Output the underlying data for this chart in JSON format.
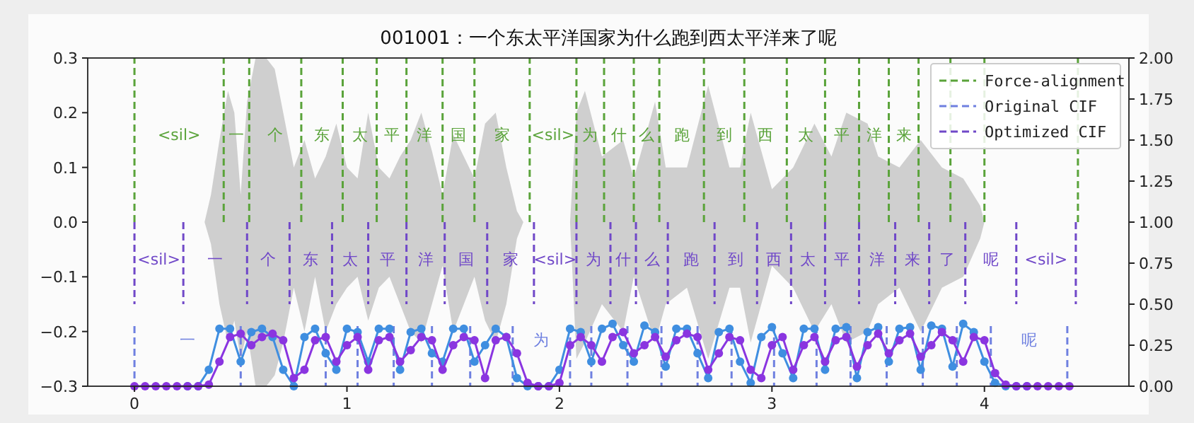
{
  "chart_data": {
    "type": "line",
    "title": "001001：一个东太平洋国家为什么跑到西太平洋来了呢",
    "xlim": [
      -0.22,
      4.68
    ],
    "xticks": [
      0,
      1,
      2,
      3,
      4
    ],
    "ylim": [
      -0.3,
      0.3
    ],
    "yticks": [
      {
        "value": -0.3,
        "label": "−0.3"
      },
      {
        "value": -0.2,
        "label": "−0.2"
      },
      {
        "value": -0.1,
        "label": "−0.1"
      },
      {
        "value": 0,
        "label": "0.0"
      },
      0.1,
      0.2,
      0.3
    ],
    "y2lim": [
      0,
      2
    ],
    "y2ticks": [
      {
        "value": 0,
        "label": "0.00"
      },
      {
        "value": 0.25,
        "label": "0.25"
      },
      {
        "value": 0.5,
        "label": "0.50"
      },
      {
        "value": 0.75,
        "label": "0.75"
      },
      {
        "value": 1,
        "label": "1.00"
      },
      {
        "value": 1.25,
        "label": "1.25"
      },
      {
        "value": 1.5,
        "label": "1.50"
      },
      {
        "value": 1.75,
        "label": "1.75"
      },
      {
        "value": 2,
        "label": "2.00"
      }
    ],
    "legend": "top right",
    "x": [
      0,
      0.05,
      0.1,
      0.15,
      0.2,
      0.25,
      0.3,
      0.35,
      0.4,
      0.45,
      0.5,
      0.55,
      0.6,
      0.65,
      0.7,
      0.75,
      0.8,
      0.85,
      0.9,
      0.95,
      1.0,
      1.05,
      1.1,
      1.15,
      1.2,
      1.25,
      1.3,
      1.35,
      1.4,
      1.45,
      1.5,
      1.55,
      1.6,
      1.65,
      1.7,
      1.75,
      1.8,
      1.85,
      1.9,
      1.95,
      2.0,
      2.05,
      2.1,
      2.15,
      2.2,
      2.25,
      2.3,
      2.35,
      2.4,
      2.45,
      2.5,
      2.55,
      2.6,
      2.65,
      2.7,
      2.75,
      2.8,
      2.85,
      2.9,
      2.95,
      3.0,
      3.05,
      3.1,
      3.15,
      3.2,
      3.25,
      3.3,
      3.35,
      3.4,
      3.45,
      3.5,
      3.55,
      3.6,
      3.65,
      3.7,
      3.75,
      3.8,
      3.85,
      3.9,
      3.95,
      4.0,
      4.05,
      4.1,
      4.15,
      4.2,
      4.25,
      4.3,
      4.35,
      4.4
    ],
    "series": [
      {
        "type": "area",
        "color": "#cfcfcf",
        "x": [
          0,
          0.33,
          0.36,
          0.4,
          0.44,
          0.47,
          0.5,
          0.53,
          0.57,
          0.62,
          0.66,
          0.7,
          0.75,
          0.8,
          0.85,
          0.9,
          0.95,
          1.0,
          1.05,
          1.1,
          1.15,
          1.2,
          1.25,
          1.3,
          1.35,
          1.4,
          1.45,
          1.5,
          1.55,
          1.6,
          1.65,
          1.7,
          1.75,
          1.8,
          1.83,
          2.05,
          2.08,
          2.12,
          2.2,
          2.3,
          2.35,
          2.45,
          2.5,
          2.6,
          2.7,
          2.8,
          2.85,
          2.9,
          3.0,
          3.1,
          3.2,
          3.28,
          3.35,
          3.45,
          3.5,
          3.6,
          3.7,
          3.8,
          3.9,
          3.98,
          4.0,
          4.44
        ],
        "values": [
          0,
          0,
          0.05,
          0.15,
          0.24,
          0.2,
          0.05,
          0.22,
          0.3,
          0.3,
          0.28,
          0.2,
          0.1,
          0.15,
          0.08,
          0.12,
          0.18,
          0.1,
          0.08,
          0.2,
          0.1,
          0.08,
          0.12,
          0.15,
          0.2,
          0.13,
          0.05,
          0.16,
          0.12,
          0.08,
          0.18,
          0.2,
          0.1,
          0.02,
          0,
          0,
          0.2,
          0.24,
          0.12,
          0.15,
          0.08,
          0.22,
          0.1,
          0.1,
          0.25,
          0.1,
          0.1,
          0.2,
          0.06,
          0.1,
          0.18,
          0.12,
          0.2,
          0.18,
          0.12,
          0.1,
          0.15,
          0.1,
          0.08,
          0.03,
          0,
          0
        ]
      },
      {
        "type": "area",
        "color": "#cfcfcf",
        "x": [
          0,
          0.33,
          0.36,
          0.4,
          0.44,
          0.47,
          0.5,
          0.53,
          0.57,
          0.62,
          0.66,
          0.7,
          0.75,
          0.8,
          0.85,
          0.9,
          0.95,
          1.0,
          1.05,
          1.1,
          1.15,
          1.2,
          1.25,
          1.3,
          1.35,
          1.4,
          1.45,
          1.5,
          1.55,
          1.6,
          1.65,
          1.7,
          1.75,
          1.8,
          1.83,
          2.05,
          2.08,
          2.12,
          2.2,
          2.3,
          2.35,
          2.45,
          2.5,
          2.6,
          2.7,
          2.8,
          2.85,
          2.9,
          3.0,
          3.1,
          3.2,
          3.28,
          3.35,
          3.45,
          3.5,
          3.6,
          3.7,
          3.8,
          3.9,
          3.98,
          4.0,
          4.44
        ],
        "values": [
          0,
          0,
          -0.04,
          -0.15,
          -0.22,
          -0.18,
          -0.25,
          -0.2,
          -0.3,
          -0.3,
          -0.28,
          -0.22,
          -0.12,
          -0.2,
          -0.1,
          -0.2,
          -0.15,
          -0.12,
          -0.1,
          -0.18,
          -0.12,
          -0.1,
          -0.15,
          -0.2,
          -0.22,
          -0.15,
          -0.08,
          -0.2,
          -0.15,
          -0.1,
          -0.18,
          -0.22,
          -0.15,
          -0.03,
          0,
          0,
          -0.25,
          -0.22,
          -0.15,
          -0.2,
          -0.1,
          -0.22,
          -0.15,
          -0.12,
          -0.25,
          -0.12,
          -0.12,
          -0.22,
          -0.08,
          -0.12,
          -0.2,
          -0.15,
          -0.22,
          -0.2,
          -0.15,
          -0.12,
          -0.2,
          -0.12,
          -0.1,
          -0.03,
          0,
          0
        ]
      },
      {
        "name": "Force-alignment",
        "color": "#5aa33a",
        "line_style": "dashed",
        "x": [
          0,
          0
        ],
        "values": [
          0,
          0.3
        ]
      },
      {
        "color": "#5aa33a",
        "line_style": "dashed",
        "x": [
          0.42,
          0.42
        ],
        "values": [
          0,
          0.3
        ]
      },
      {
        "color": "#5aa33a",
        "line_style": "dashed",
        "x": [
          0.54,
          0.54
        ],
        "values": [
          0,
          0.3
        ]
      },
      {
        "color": "#5aa33a",
        "line_style": "dashed",
        "x": [
          0.785,
          0.785
        ],
        "values": [
          0,
          0.3
        ]
      },
      {
        "color": "#5aa33a",
        "line_style": "dashed",
        "x": [
          0.98,
          0.98
        ],
        "values": [
          0,
          0.3
        ]
      },
      {
        "color": "#5aa33a",
        "line_style": "dashed",
        "x": [
          1.14,
          1.14
        ],
        "values": [
          0,
          0.3
        ]
      },
      {
        "color": "#5aa33a",
        "line_style": "dashed",
        "x": [
          1.28,
          1.28
        ],
        "values": [
          0,
          0.3
        ]
      },
      {
        "color": "#5aa33a",
        "line_style": "dashed",
        "x": [
          1.45,
          1.45
        ],
        "values": [
          0,
          0.3
        ]
      },
      {
        "color": "#5aa33a",
        "line_style": "dashed",
        "x": [
          1.6,
          1.6
        ],
        "values": [
          0,
          0.3
        ]
      },
      {
        "color": "#5aa33a",
        "line_style": "dashed",
        "x": [
          1.86,
          1.86
        ],
        "values": [
          0,
          0.3
        ]
      },
      {
        "color": "#5aa33a",
        "line_style": "dashed",
        "x": [
          2.08,
          2.08
        ],
        "values": [
          0,
          0.3
        ]
      },
      {
        "color": "#5aa33a",
        "line_style": "dashed",
        "x": [
          2.21,
          2.21
        ],
        "values": [
          0,
          0.3
        ]
      },
      {
        "color": "#5aa33a",
        "line_style": "dashed",
        "x": [
          2.35,
          2.35
        ],
        "values": [
          0,
          0.3
        ]
      },
      {
        "color": "#5aa33a",
        "line_style": "dashed",
        "x": [
          2.47,
          2.47
        ],
        "values": [
          0,
          0.3
        ]
      },
      {
        "color": "#5aa33a",
        "line_style": "dashed",
        "x": [
          2.68,
          2.68
        ],
        "values": [
          0,
          0.3
        ]
      },
      {
        "color": "#5aa33a",
        "line_style": "dashed",
        "x": [
          2.87,
          2.87
        ],
        "values": [
          0,
          0.3
        ]
      },
      {
        "color": "#5aa33a",
        "line_style": "dashed",
        "x": [
          3.07,
          3.07
        ],
        "values": [
          0,
          0.3
        ]
      },
      {
        "color": "#5aa33a",
        "line_style": "dashed",
        "x": [
          3.25,
          3.25
        ],
        "values": [
          0,
          0.3
        ]
      },
      {
        "color": "#5aa33a",
        "line_style": "dashed",
        "x": [
          3.41,
          3.41
        ],
        "values": [
          0,
          0.3
        ]
      },
      {
        "color": "#5aa33a",
        "line_style": "dashed",
        "x": [
          3.55,
          3.55
        ],
        "values": [
          0,
          0.3
        ]
      },
      {
        "color": "#5aa33a",
        "line_style": "dashed",
        "x": [
          3.69,
          3.69
        ],
        "values": [
          0,
          0.3
        ]
      },
      {
        "color": "#5aa33a",
        "line_style": "dashed",
        "x": [
          3.84,
          3.84
        ],
        "values": [
          0,
          0.3
        ]
      },
      {
        "color": "#5aa33a",
        "line_style": "dashed",
        "x": [
          4.0,
          4.0
        ],
        "values": [
          0,
          0.3
        ]
      },
      {
        "color": "#5aa33a",
        "line_style": "dashed",
        "x": [
          4.44,
          4.44
        ],
        "values": [
          0,
          0.3
        ]
      },
      {
        "name": "Original CIF",
        "color": "#6f80e0",
        "line_style": "dashed",
        "x": [
          0,
          0
        ],
        "values": [
          -0.19,
          -0.3
        ]
      },
      {
        "color": "#6f80e0",
        "line_style": "dashed",
        "x": [
          0.5,
          0.5
        ],
        "values": [
          -0.19,
          -0.3
        ]
      },
      {
        "color": "#6f80e0",
        "line_style": "dashed",
        "x": [
          0.9,
          0.9
        ],
        "values": [
          -0.19,
          -0.3
        ]
      },
      {
        "color": "#6f80e0",
        "line_style": "dashed",
        "x": [
          1.05,
          1.05
        ],
        "values": [
          -0.19,
          -0.3
        ]
      },
      {
        "color": "#6f80e0",
        "line_style": "dashed",
        "x": [
          1.22,
          1.22
        ],
        "values": [
          -0.19,
          -0.3
        ]
      },
      {
        "color": "#6f80e0",
        "line_style": "dashed",
        "x": [
          1.4,
          1.4
        ],
        "values": [
          -0.19,
          -0.3
        ]
      },
      {
        "color": "#6f80e0",
        "line_style": "dashed",
        "x": [
          1.58,
          1.58
        ],
        "values": [
          -0.19,
          -0.3
        ]
      },
      {
        "color": "#6f80e0",
        "line_style": "dashed",
        "x": [
          1.78,
          1.78
        ],
        "values": [
          -0.19,
          -0.3
        ]
      },
      {
        "color": "#6f80e0",
        "line_style": "dashed",
        "x": [
          2.05,
          2.05
        ],
        "values": [
          -0.19,
          -0.3
        ]
      },
      {
        "color": "#6f80e0",
        "line_style": "dashed",
        "x": [
          2.15,
          2.15
        ],
        "values": [
          -0.19,
          -0.3
        ]
      },
      {
        "color": "#6f80e0",
        "line_style": "dashed",
        "x": [
          2.32,
          2.32
        ],
        "values": [
          -0.19,
          -0.3
        ]
      },
      {
        "color": "#6f80e0",
        "line_style": "dashed",
        "x": [
          2.48,
          2.48
        ],
        "values": [
          -0.19,
          -0.3
        ]
      },
      {
        "color": "#6f80e0",
        "line_style": "dashed",
        "x": [
          2.65,
          2.65
        ],
        "values": [
          -0.19,
          -0.3
        ]
      },
      {
        "color": "#6f80e0",
        "line_style": "dashed",
        "x": [
          2.81,
          2.81
        ],
        "values": [
          -0.19,
          -0.3
        ]
      },
      {
        "color": "#6f80e0",
        "line_style": "dashed",
        "x": [
          3.01,
          3.01
        ],
        "values": [
          -0.19,
          -0.3
        ]
      },
      {
        "color": "#6f80e0",
        "line_style": "dashed",
        "x": [
          3.21,
          3.21
        ],
        "values": [
          -0.19,
          -0.3
        ]
      },
      {
        "color": "#6f80e0",
        "line_style": "dashed",
        "x": [
          3.37,
          3.37
        ],
        "values": [
          -0.19,
          -0.3
        ]
      },
      {
        "color": "#6f80e0",
        "line_style": "dashed",
        "x": [
          3.54,
          3.54
        ],
        "values": [
          -0.19,
          -0.3
        ]
      },
      {
        "color": "#6f80e0",
        "line_style": "dashed",
        "x": [
          3.71,
          3.71
        ],
        "values": [
          -0.19,
          -0.3
        ]
      },
      {
        "color": "#6f80e0",
        "line_style": "dashed",
        "x": [
          3.87,
          3.87
        ],
        "values": [
          -0.19,
          -0.3
        ]
      },
      {
        "color": "#6f80e0",
        "line_style": "dashed",
        "x": [
          4.03,
          4.03
        ],
        "values": [
          -0.19,
          -0.3
        ]
      },
      {
        "color": "#6f80e0",
        "line_style": "dashed",
        "x": [
          4.39,
          4.39
        ],
        "values": [
          -0.19,
          -0.3
        ]
      },
      {
        "name": "Optimized CIF",
        "color": "#7048c8",
        "line_style": "dashed",
        "x": [
          0,
          0
        ],
        "values": [
          0,
          -0.15
        ]
      },
      {
        "color": "#7048c8",
        "line_style": "dashed",
        "x": [
          0.23,
          0.23
        ],
        "values": [
          0,
          -0.15
        ]
      },
      {
        "color": "#7048c8",
        "line_style": "dashed",
        "x": [
          0.53,
          0.53
        ],
        "values": [
          0,
          -0.15
        ]
      },
      {
        "color": "#7048c8",
        "line_style": "dashed",
        "x": [
          0.73,
          0.73
        ],
        "values": [
          0,
          -0.15
        ]
      },
      {
        "color": "#7048c8",
        "line_style": "dashed",
        "x": [
          0.93,
          0.93
        ],
        "values": [
          0,
          -0.15
        ]
      },
      {
        "color": "#7048c8",
        "line_style": "dashed",
        "x": [
          1.1,
          1.1
        ],
        "values": [
          0,
          -0.15
        ]
      },
      {
        "color": "#7048c8",
        "line_style": "dashed",
        "x": [
          1.28,
          1.28
        ],
        "values": [
          0,
          -0.15
        ]
      },
      {
        "color": "#7048c8",
        "line_style": "dashed",
        "x": [
          1.46,
          1.46
        ],
        "values": [
          0,
          -0.15
        ]
      },
      {
        "color": "#7048c8",
        "line_style": "dashed",
        "x": [
          1.66,
          1.66
        ],
        "values": [
          0,
          -0.15
        ]
      },
      {
        "color": "#7048c8",
        "line_style": "dashed",
        "x": [
          1.88,
          1.88
        ],
        "values": [
          0,
          -0.15
        ]
      },
      {
        "color": "#7048c8",
        "line_style": "dashed",
        "x": [
          2.08,
          2.08
        ],
        "values": [
          0,
          -0.15
        ]
      },
      {
        "color": "#7048c8",
        "line_style": "dashed",
        "x": [
          2.24,
          2.24
        ],
        "values": [
          0,
          -0.15
        ]
      },
      {
        "color": "#7048c8",
        "line_style": "dashed",
        "x": [
          2.36,
          2.36
        ],
        "values": [
          0,
          -0.15
        ]
      },
      {
        "color": "#7048c8",
        "line_style": "dashed",
        "x": [
          2.51,
          2.51
        ],
        "values": [
          0,
          -0.15
        ]
      },
      {
        "color": "#7048c8",
        "line_style": "dashed",
        "x": [
          2.73,
          2.73
        ],
        "values": [
          0,
          -0.15
        ]
      },
      {
        "color": "#7048c8",
        "line_style": "dashed",
        "x": [
          2.93,
          2.93
        ],
        "values": [
          0,
          -0.15
        ]
      },
      {
        "color": "#7048c8",
        "line_style": "dashed",
        "x": [
          3.09,
          3.09
        ],
        "values": [
          0,
          -0.15
        ]
      },
      {
        "color": "#7048c8",
        "line_style": "dashed",
        "x": [
          3.25,
          3.25
        ],
        "values": [
          0,
          -0.15
        ]
      },
      {
        "color": "#7048c8",
        "line_style": "dashed",
        "x": [
          3.41,
          3.41
        ],
        "values": [
          0,
          -0.15
        ]
      },
      {
        "color": "#7048c8",
        "line_style": "dashed",
        "x": [
          3.58,
          3.58
        ],
        "values": [
          0,
          -0.15
        ]
      },
      {
        "color": "#7048c8",
        "line_style": "dashed",
        "x": [
          3.74,
          3.74
        ],
        "values": [
          0,
          -0.15
        ]
      },
      {
        "color": "#7048c8",
        "line_style": "dashed",
        "x": [
          3.91,
          3.91
        ],
        "values": [
          0,
          -0.15
        ]
      },
      {
        "color": "#7048c8",
        "line_style": "dashed",
        "x": [
          4.15,
          4.15
        ],
        "values": [
          0,
          -0.15
        ]
      },
      {
        "color": "#7048c8",
        "line_style": "dashed",
        "x": [
          4.43,
          4.43
        ],
        "values": [
          0,
          -0.15
        ]
      },
      {
        "axis": "y2",
        "color": "#3f8ee0",
        "marker": "circle",
        "line_style": "solid",
        "values": [
          null,
          null,
          null,
          null,
          null,
          0,
          0,
          0.1,
          0.35,
          0.35,
          0.15,
          0.33,
          0.35,
          0.3,
          0.1,
          0,
          0.3,
          0.35,
          0.2,
          0.1,
          0.35,
          0.33,
          0.15,
          0.35,
          0.35,
          0.1,
          0.33,
          0.35,
          0.2,
          0.15,
          0.35,
          0.35,
          0.15,
          0.25,
          0.35,
          0.3,
          0.05,
          0,
          0,
          0,
          0.1,
          0.35,
          0.33,
          0.15,
          0.35,
          0.38,
          0.25,
          0.15,
          0.37,
          0.33,
          0.12,
          0.35,
          0.35,
          0.2,
          0.05,
          0.33,
          0.35,
          0.15,
          0.02,
          0.3,
          0.36,
          0.2,
          0.05,
          0.35,
          0.35,
          0.1,
          0.35,
          0.36,
          0.05,
          0.33,
          0.36,
          0.15,
          0.35,
          0.36,
          0.1,
          0.37,
          0.35,
          0.12,
          0.38,
          0.33,
          0.15,
          0.02,
          0,
          0,
          0,
          null,
          null,
          null,
          null
        ]
      },
      {
        "axis": "y2",
        "color": "#8a35e0",
        "marker": "circle",
        "line_style": "solid",
        "values": [
          0,
          0,
          0,
          0,
          0,
          0,
          0,
          0.01,
          0.15,
          0.3,
          0.32,
          0.25,
          0.3,
          0.32,
          0.28,
          0.05,
          0.1,
          0.28,
          0.3,
          0.15,
          0.25,
          0.3,
          0.1,
          0.28,
          0.3,
          0.15,
          0.22,
          0.3,
          0.28,
          0.1,
          0.25,
          0.3,
          0.28,
          0.05,
          0.28,
          0.3,
          0.2,
          0.02,
          0,
          0,
          0.02,
          0.25,
          0.3,
          0.25,
          0.15,
          0.3,
          0.33,
          0.2,
          0.25,
          0.3,
          0.18,
          0.28,
          0.32,
          0.3,
          0.1,
          0.2,
          0.3,
          0.28,
          0.1,
          0.05,
          0.25,
          0.3,
          0.1,
          0.25,
          0.3,
          0.15,
          0.28,
          0.3,
          0.12,
          0.25,
          0.32,
          0.2,
          0.28,
          0.32,
          0.18,
          0.25,
          0.33,
          0.28,
          0.15,
          0.3,
          0.28,
          0.08,
          0.01,
          0,
          0,
          0,
          0,
          0,
          0
        ]
      }
    ],
    "annotations": [
      {
        "text": "<sil>",
        "x": 0,
        "y": 0.16
      },
      {
        "text": "一",
        "x": 0.42,
        "y": 0.16
      },
      {
        "text": "个",
        "x": 0.54,
        "y": 0.16
      },
      {
        "text": "东",
        "x": 0.785,
        "y": 0.16
      },
      {
        "text": "太",
        "x": 0.98,
        "y": 0.16
      },
      {
        "text": "平",
        "x": 1.14,
        "y": 0.16
      },
      {
        "text": "洋",
        "x": 1.28,
        "y": 0.16
      },
      {
        "text": "国",
        "x": 1.45,
        "y": 0.16
      },
      {
        "text": "家",
        "x": 1.6,
        "y": 0.16
      },
      {
        "text": "<sil>",
        "x": 1.86,
        "y": 0.16
      },
      {
        "text": "为",
        "x": 2.08,
        "y": 0.16
      },
      {
        "text": "什",
        "x": 2.21,
        "y": 0.16
      },
      {
        "text": "么",
        "x": 2.35,
        "y": 0.16
      },
      {
        "text": "跑",
        "x": 2.47,
        "y": 0.16
      },
      {
        "text": "到",
        "x": 2.68,
        "y": 0.16
      },
      {
        "text": "西",
        "x": 2.87,
        "y": 0.16
      },
      {
        "text": "太",
        "x": 3.07,
        "y": 0.16
      },
      {
        "text": "平",
        "x": 3.25,
        "y": 0.16
      },
      {
        "text": "洋",
        "x": 3.41,
        "y": 0.16
      },
      {
        "text": "来",
        "x": 3.55,
        "y": 0.16
      },
      {
        "text": "<sil>",
        "x": 0,
        "y": -0.067
      },
      {
        "text": "一",
        "x": 0.23,
        "y": -0.067
      },
      {
        "text": "个",
        "x": 0.53,
        "y": -0.067
      },
      {
        "text": "东",
        "x": 0.73,
        "y": -0.067
      },
      {
        "text": "太",
        "x": 0.93,
        "y": -0.067
      },
      {
        "text": "平",
        "x": 1.1,
        "y": -0.067
      },
      {
        "text": "洋",
        "x": 1.28,
        "y": -0.067
      },
      {
        "text": "国",
        "x": 1.46,
        "y": -0.067
      },
      {
        "text": "家",
        "x": 1.66,
        "y": -0.067
      },
      {
        "text": "<sil>",
        "x": 1.88,
        "y": -0.067
      },
      {
        "text": "为",
        "x": 2.08,
        "y": -0.067
      },
      {
        "text": "什",
        "x": 2.24,
        "y": -0.067
      },
      {
        "text": "么",
        "x": 2.36,
        "y": -0.067
      },
      {
        "text": "跑",
        "x": 2.51,
        "y": -0.067
      },
      {
        "text": "到",
        "x": 2.73,
        "y": -0.067
      },
      {
        "text": "西",
        "x": 2.93,
        "y": -0.067
      },
      {
        "text": "太",
        "x": 3.09,
        "y": -0.067
      },
      {
        "text": "平",
        "x": 3.25,
        "y": -0.067
      },
      {
        "text": "洋",
        "x": 3.41,
        "y": -0.067
      },
      {
        "text": "来",
        "x": 3.58,
        "y": -0.067
      },
      {
        "text": "了",
        "x": 3.74,
        "y": -0.067
      },
      {
        "text": "呢",
        "x": 3.91,
        "y": -0.067
      },
      {
        "text": "<sil>",
        "x": 4.15,
        "y": -0.067
      },
      {
        "text": "一",
        "x": 0,
        "y": -0.215
      },
      {
        "text": "为",
        "x": 1.78,
        "y": -0.215
      },
      {
        "text": "呢",
        "x": 4.03,
        "y": -0.215
      }
    ]
  }
}
